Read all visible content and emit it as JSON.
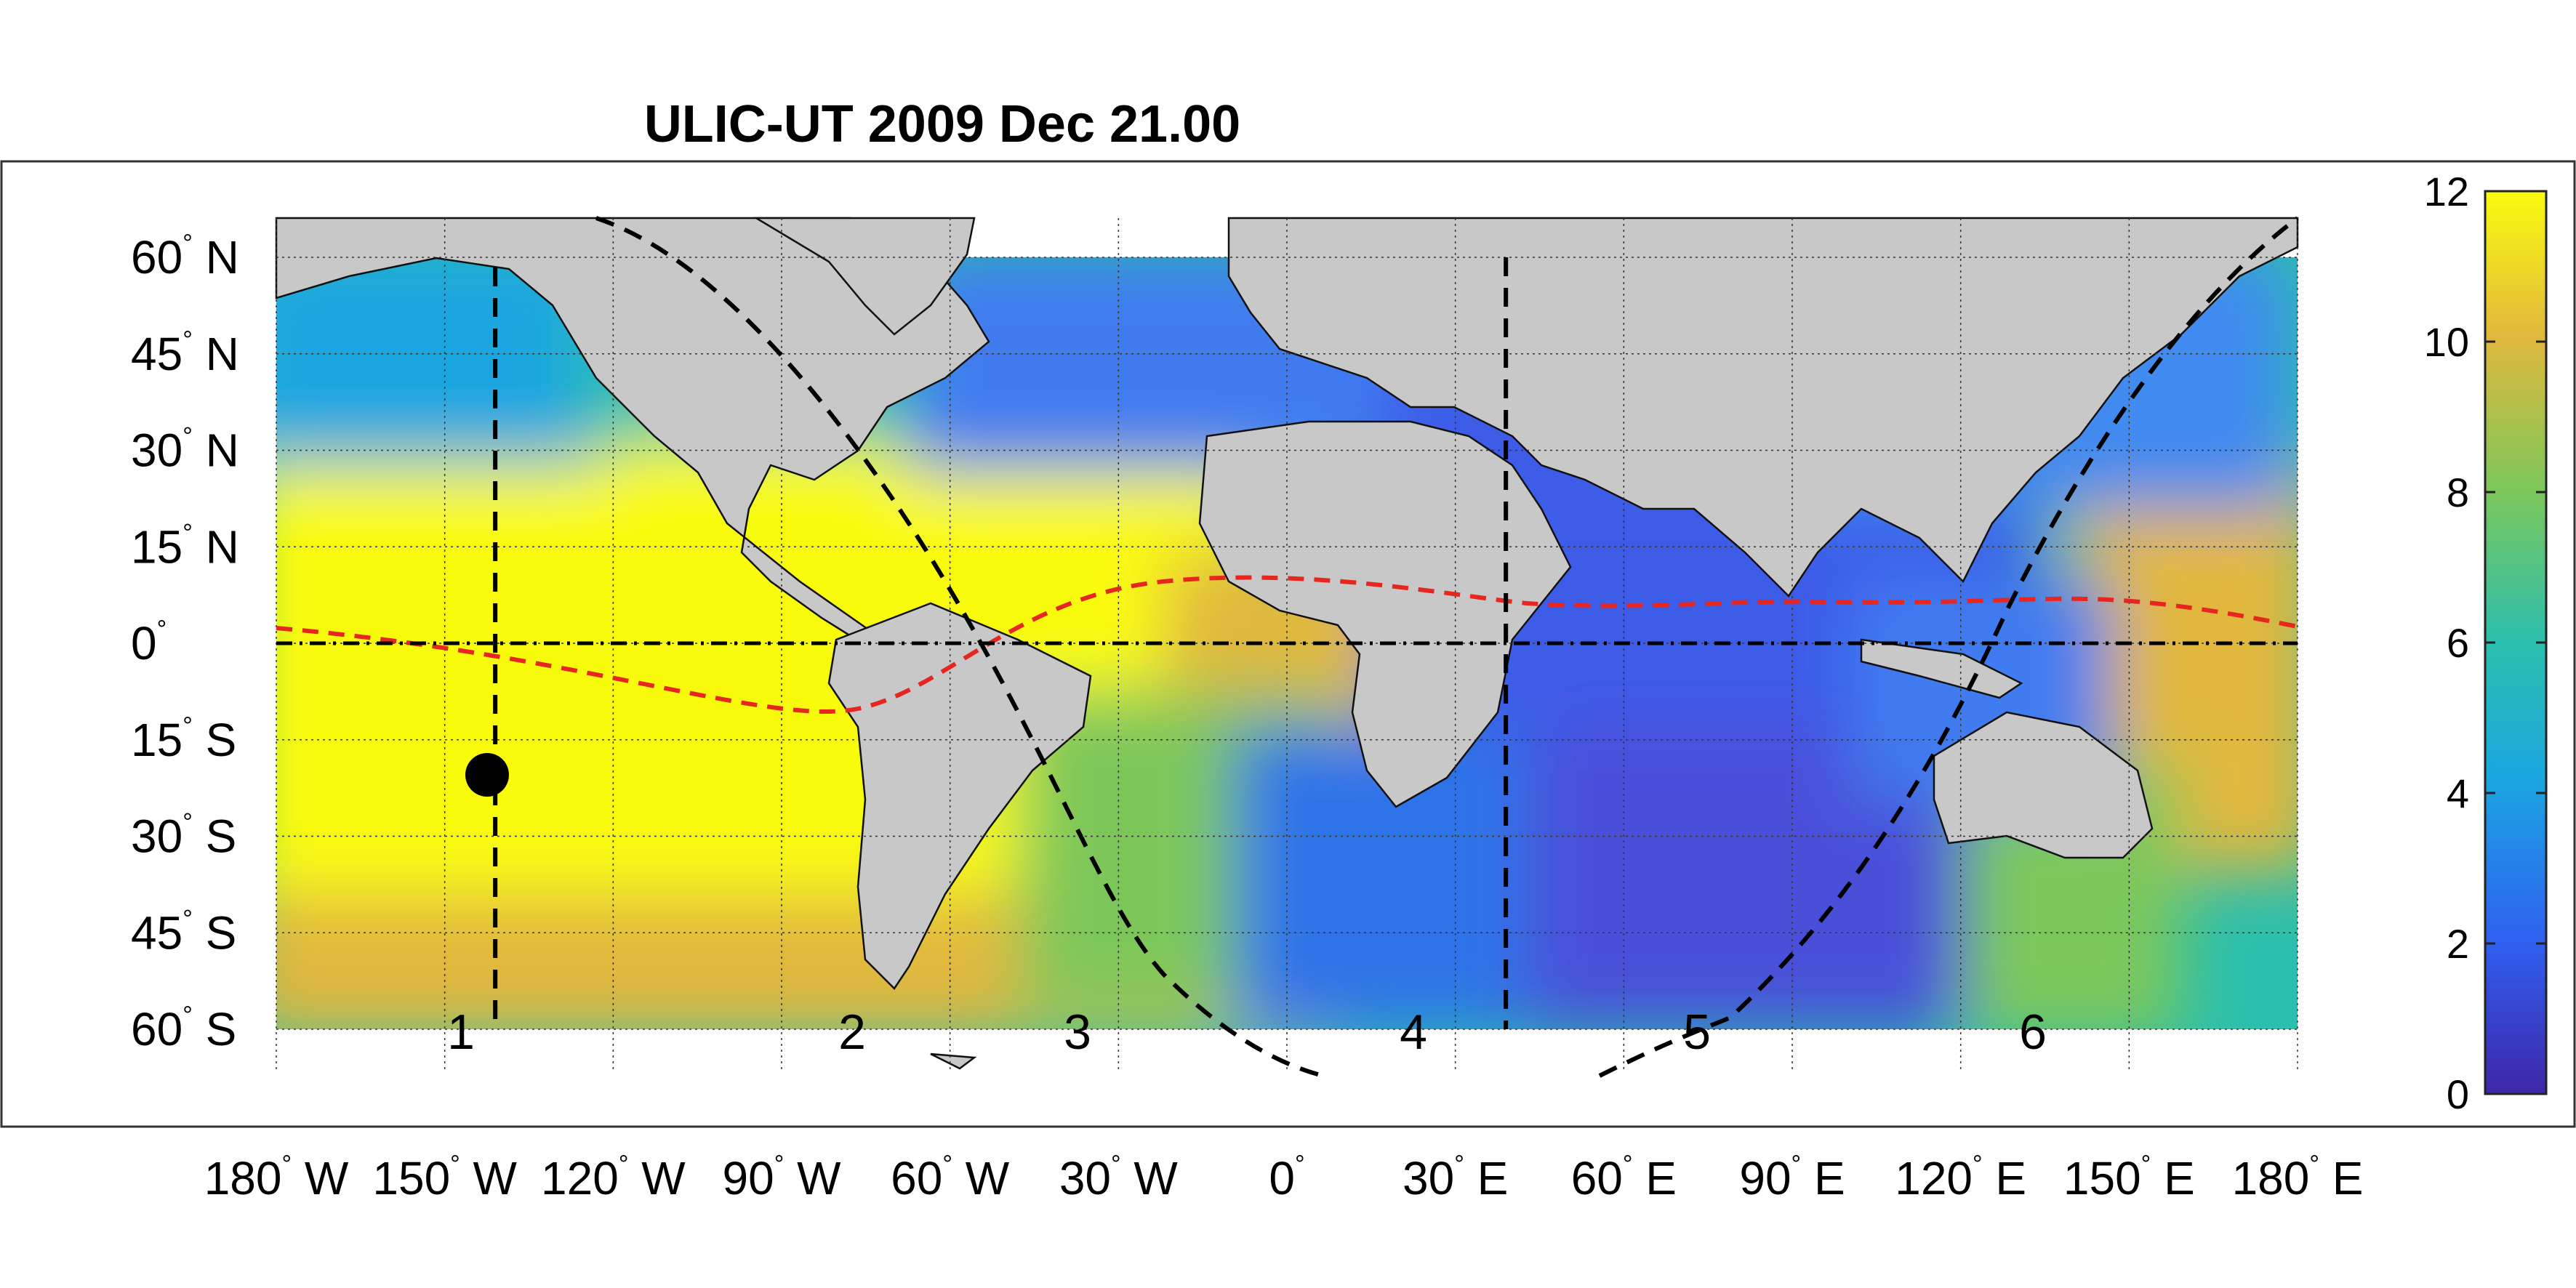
{
  "title": "ULIC-UT 2009 Dec 21.00",
  "latitude_labels": [
    {
      "value": "60",
      "suffix": "N",
      "lat": 60
    },
    {
      "value": "45",
      "suffix": "N",
      "lat": 45
    },
    {
      "value": "30",
      "suffix": "N",
      "lat": 30
    },
    {
      "value": "15",
      "suffix": "N",
      "lat": 15
    },
    {
      "value": "0",
      "suffix": "",
      "lat": 0
    },
    {
      "value": "15",
      "suffix": "S",
      "lat": -15
    },
    {
      "value": "30",
      "suffix": "S",
      "lat": -30
    },
    {
      "value": "45",
      "suffix": "S",
      "lat": -45
    },
    {
      "value": "60",
      "suffix": "S",
      "lat": -60
    }
  ],
  "longitude_labels": [
    {
      "value": "180",
      "suffix": "W",
      "lon": -180
    },
    {
      "value": "150",
      "suffix": "W",
      "lon": -150
    },
    {
      "value": "120",
      "suffix": "W",
      "lon": -120
    },
    {
      "value": "90",
      "suffix": "W",
      "lon": -90
    },
    {
      "value": "60",
      "suffix": "W",
      "lon": -60
    },
    {
      "value": "30",
      "suffix": "W",
      "lon": -30
    },
    {
      "value": "0",
      "suffix": "",
      "lon": 0
    },
    {
      "value": "30",
      "suffix": "E",
      "lon": 30
    },
    {
      "value": "60",
      "suffix": "E",
      "lon": 60
    },
    {
      "value": "90",
      "suffix": "E",
      "lon": 90
    },
    {
      "value": "120",
      "suffix": "E",
      "lon": 120
    },
    {
      "value": "150",
      "suffix": "E",
      "lon": 150
    },
    {
      "value": "180",
      "suffix": "E",
      "lon": 180
    }
  ],
  "colorbar": {
    "ticks": [
      "0",
      "2",
      "4",
      "6",
      "8",
      "10",
      "12"
    ],
    "range": [
      0,
      12
    ],
    "colors": [
      "#3e26a8",
      "#2f60f0",
      "#1aa6e0",
      "#2bbfad",
      "#7dc75a",
      "#e1b83c",
      "#f9fb0e"
    ]
  },
  "track_labels": [
    "1",
    "2",
    "3",
    "4",
    "5",
    "6"
  ],
  "colors": {
    "land": "#c8c8c8",
    "equator_line": "#000000",
    "terminator_line": "#e6261f",
    "track_line": "#000000",
    "subsolar_marker": "#000000"
  },
  "map_extent": {
    "lon": [
      -180,
      180
    ],
    "lat": [
      -67,
      68
    ]
  }
}
